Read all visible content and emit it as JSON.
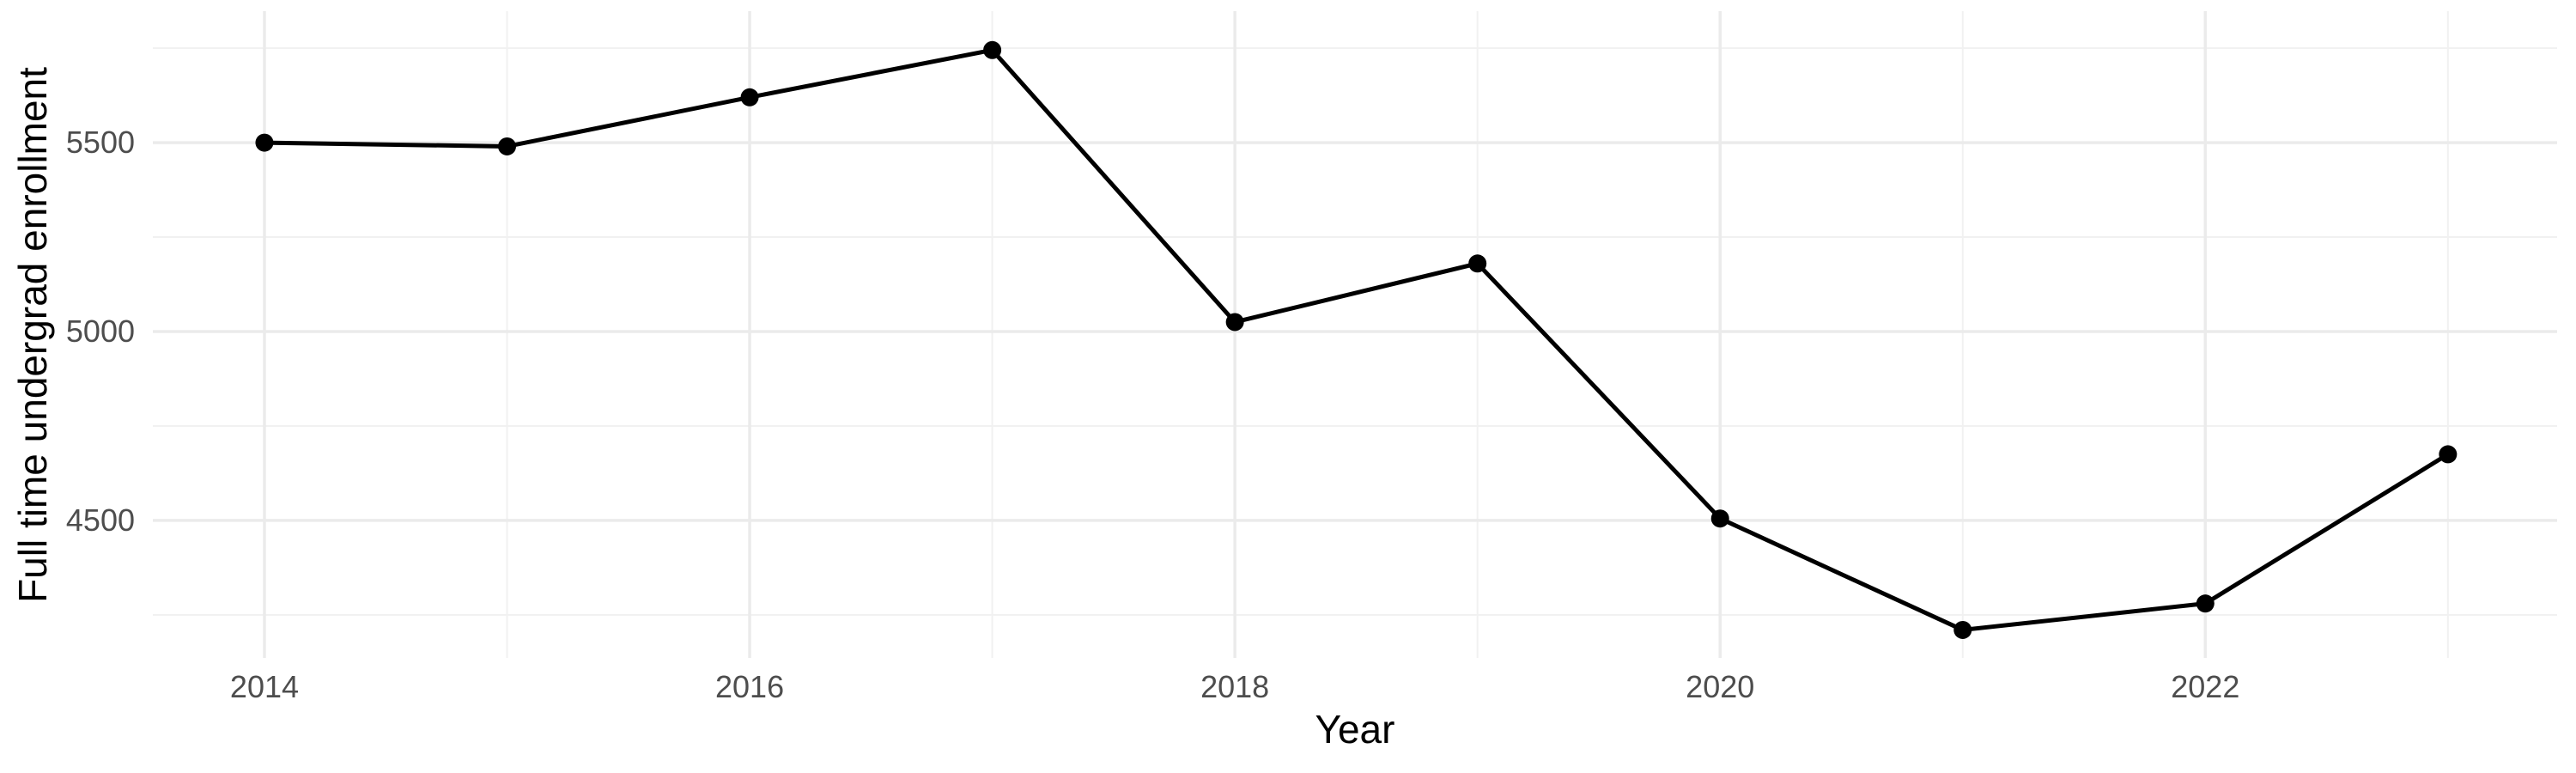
{
  "chart_data": {
    "type": "line",
    "title": "",
    "xlabel": "Year",
    "ylabel": "Full time undergrad enrollment",
    "series_name": "Full time undergrad enrollment",
    "x": [
      2014,
      2015,
      2016,
      2017,
      2018,
      2019,
      2020,
      2021,
      2022,
      2023
    ],
    "values": [
      5500,
      5490,
      5620,
      5745,
      5025,
      5180,
      4505,
      4210,
      4280,
      4675
    ],
    "x_major_ticks": [
      2014,
      2016,
      2018,
      2020,
      2022
    ],
    "x_tick_labels": [
      "2014",
      "2016",
      "2018",
      "2020",
      "2022"
    ],
    "x_minor_ticks": [
      2015,
      2017,
      2019,
      2021,
      2023
    ],
    "y_major_ticks": [
      4500,
      5000,
      5500
    ],
    "y_tick_labels": [
      "4500",
      "5000",
      "5500"
    ],
    "y_minor_ticks": [
      4250,
      4750,
      5250,
      5750
    ],
    "xlim": [
      2013.54,
      2023.45
    ],
    "ylim": [
      4136,
      5848
    ],
    "grid": "major+minor",
    "legend": false,
    "colors": {
      "background": "#FFFFFF",
      "line": "#000000",
      "point": "#000000",
      "grid_major": "#EBEBEB",
      "grid_minor": "#F1F1F1",
      "tick_label": "#4D4D4D",
      "axis_title": "#000000"
    }
  }
}
